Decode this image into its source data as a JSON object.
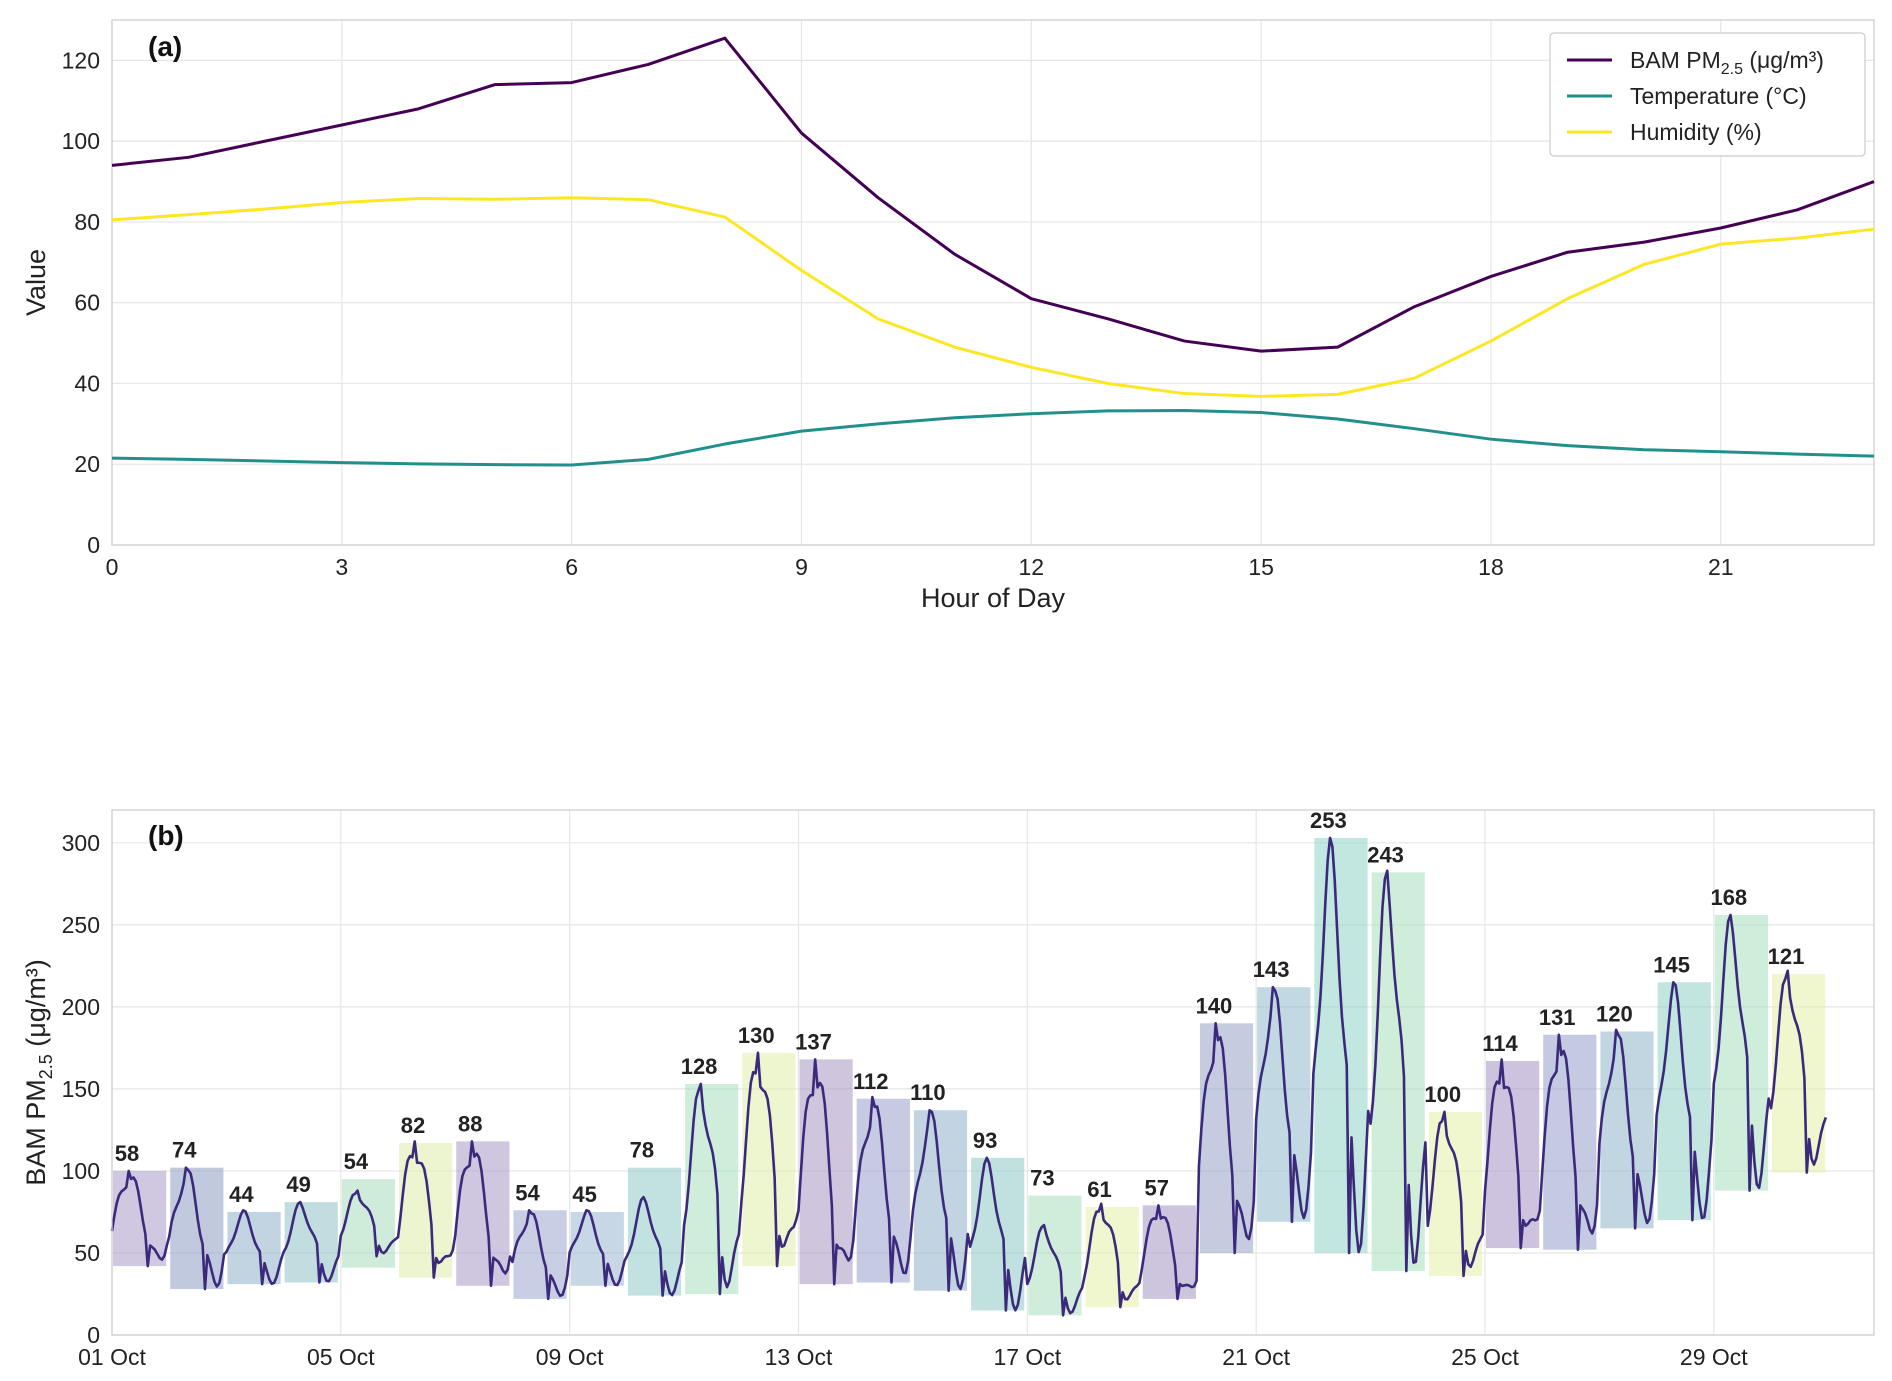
{
  "chart_data": [
    {
      "type": "line",
      "panel": "(a)",
      "xlabel": "Hour of Day",
      "ylabel": "Value",
      "xlim": [
        0,
        23
      ],
      "ylim": [
        0,
        130
      ],
      "xticks": [
        "0",
        "3",
        "6",
        "9",
        "12",
        "15",
        "18",
        "21"
      ],
      "yticks": [
        "0",
        "20",
        "40",
        "60",
        "80",
        "100",
        "120"
      ],
      "grid": true,
      "legend": "top-right",
      "x": [
        0,
        1,
        2,
        3,
        4,
        5,
        6,
        7,
        8,
        9,
        10,
        11,
        12,
        13,
        14,
        15,
        16,
        17,
        18,
        19,
        20,
        21,
        22,
        23
      ],
      "series": [
        {
          "name": "BAM PM",
          "sub": "2.5",
          "unit": " (μg/m³)",
          "color": "#440154",
          "values": [
            94,
            96,
            100,
            104,
            108,
            114,
            114.5,
            119,
            125.5,
            102,
            86,
            72,
            61,
            56,
            50.5,
            48,
            49,
            59,
            66.5,
            72.5,
            75,
            78.5,
            83,
            90
          ]
        },
        {
          "name": "Temperature (°C)",
          "sub": "",
          "unit": "",
          "color": "#21908d",
          "values": [
            21.5,
            21.2,
            20.8,
            20.4,
            20.1,
            19.9,
            19.8,
            21.2,
            25,
            28.2,
            30,
            31.5,
            32.5,
            33.2,
            33.3,
            32.8,
            31.2,
            28.8,
            26.2,
            24.6,
            23.6,
            23.1,
            22.5,
            22
          ]
        },
        {
          "name": "Humidity (%)",
          "sub": "",
          "unit": "",
          "color": "#fde725",
          "values": [
            80.5,
            81.8,
            83.2,
            84.8,
            85.8,
            85.6,
            86,
            85.5,
            81.2,
            68,
            56,
            49,
            44,
            40,
            37.5,
            36.8,
            37.3,
            41.3,
            50.5,
            61,
            69.5,
            74.5,
            76,
            78.2
          ]
        }
      ]
    },
    {
      "type": "bar",
      "panel": "(b)",
      "ylabel": "BAM PM",
      "ylabel_sub": "2.5",
      "ylabel_unit": " (μg/m³)",
      "ylim": [
        0,
        320
      ],
      "xlim": [
        0,
        30.8
      ],
      "yticks": [
        "0",
        "50",
        "100",
        "150",
        "200",
        "250",
        "300"
      ],
      "xticks": [
        {
          "day": 0,
          "label": "01 Oct"
        },
        {
          "day": 4,
          "label": "05 Oct"
        },
        {
          "day": 8,
          "label": "09 Oct"
        },
        {
          "day": 12,
          "label": "13 Oct"
        },
        {
          "day": 16,
          "label": "17 Oct"
        },
        {
          "day": 20,
          "label": "21 Oct"
        },
        {
          "day": 24,
          "label": "25 Oct"
        },
        {
          "day": 28,
          "label": "29 Oct"
        }
      ],
      "grid": true,
      "daily": [
        {
          "label": "58",
          "low": 42,
          "high": 100,
          "color": "#a89bc6"
        },
        {
          "label": "74",
          "low": 28,
          "high": 102,
          "color": "#8e9dc4"
        },
        {
          "label": "44",
          "low": 31,
          "high": 75,
          "color": "#90aec8"
        },
        {
          "label": "49",
          "low": 32,
          "high": 81,
          "color": "#8ec1c4"
        },
        {
          "label": "54",
          "low": 41,
          "high": 95,
          "color": "#a8ddbd"
        },
        {
          "label": "82",
          "low": 35,
          "high": 117,
          "color": "#dcedaa"
        },
        {
          "label": "88",
          "low": 30,
          "high": 118,
          "color": "#a898c4"
        },
        {
          "label": "54",
          "low": 22,
          "high": 76,
          "color": "#9aa6cc"
        },
        {
          "label": "45",
          "low": 30,
          "high": 75,
          "color": "#9ab7cf"
        },
        {
          "label": "78",
          "low": 24,
          "high": 102,
          "color": "#8fcbc8"
        },
        {
          "label": "128",
          "low": 25,
          "high": 153,
          "color": "#a6e0bd"
        },
        {
          "label": "130",
          "low": 42,
          "high": 172,
          "color": "#e0efa8"
        },
        {
          "label": "137",
          "low": 31,
          "high": 168,
          "color": "#a897c3"
        },
        {
          "label": "112",
          "low": 32,
          "high": 144,
          "color": "#979fca"
        },
        {
          "label": "110",
          "low": 27,
          "high": 137,
          "color": "#8fb1c9"
        },
        {
          "label": "93",
          "low": 15,
          "high": 108,
          "color": "#8dc9c4"
        },
        {
          "label": "73",
          "low": 12,
          "high": 85,
          "color": "#a7dfbb"
        },
        {
          "label": "61",
          "low": 17,
          "high": 78,
          "color": "#e3efa5"
        },
        {
          "label": "57",
          "low": 22,
          "high": 79,
          "color": "#a493c2"
        },
        {
          "label": "140",
          "low": 50,
          "high": 190,
          "color": "#95a3c7"
        },
        {
          "label": "143",
          "low": 69,
          "high": 212,
          "color": "#8fb9cc"
        },
        {
          "label": "253",
          "low": 50,
          "high": 303,
          "color": "#8fd1c6"
        },
        {
          "label": "243",
          "low": 39,
          "high": 282,
          "color": "#a8e0bb"
        },
        {
          "label": "100",
          "low": 36,
          "high": 136,
          "color": "#e3efa6"
        },
        {
          "label": "114",
          "low": 53,
          "high": 167,
          "color": "#a591c2"
        },
        {
          "label": "131",
          "low": 52,
          "high": 183,
          "color": "#939fc8"
        },
        {
          "label": "120",
          "low": 65,
          "high": 185,
          "color": "#8fb5ca"
        },
        {
          "label": "145",
          "low": 70,
          "high": 215,
          "color": "#8fcfc6"
        },
        {
          "label": "168",
          "low": 88,
          "high": 256,
          "color": "#a8dfbd"
        },
        {
          "label": "121",
          "low": 99,
          "high": 220,
          "color": "#e3efa6"
        }
      ],
      "line_color": "#3b2a7c",
      "line_peaks": [
        100,
        102,
        76,
        81,
        88,
        118,
        118,
        76,
        76,
        84,
        153,
        172,
        168,
        145,
        137,
        108,
        67,
        80,
        79,
        190,
        212,
        303,
        283,
        136,
        168,
        183,
        186,
        215,
        256,
        222
      ],
      "line_troughs": [
        42,
        28,
        31,
        32,
        48,
        35,
        30,
        22,
        30,
        24,
        25,
        42,
        31,
        32,
        27,
        15,
        12,
        17,
        22,
        50,
        69,
        50,
        39,
        36,
        53,
        52,
        65,
        70,
        88,
        99
      ]
    }
  ]
}
